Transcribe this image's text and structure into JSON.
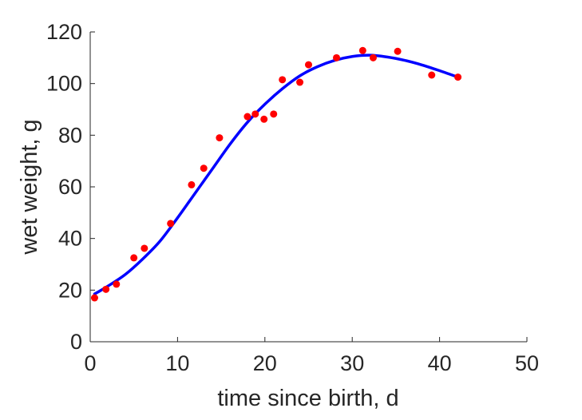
{
  "chart_data": {
    "type": "scatter",
    "title": "",
    "xlabel": "time since birth, d",
    "ylabel": "wet weight, g",
    "xlim": [
      0,
      50
    ],
    "ylim": [
      0,
      120
    ],
    "xticks": [
      0,
      10,
      20,
      30,
      40,
      50
    ],
    "yticks": [
      0,
      20,
      40,
      60,
      80,
      100,
      120
    ],
    "grid": false,
    "legend": "none",
    "series": [
      {
        "kind": "scatter",
        "color": "#ff0000",
        "points": [
          [
            0.5,
            17.0
          ],
          [
            1.8,
            20.3
          ],
          [
            3.0,
            22.3
          ],
          [
            5.0,
            32.5
          ],
          [
            6.2,
            36.2
          ],
          [
            9.2,
            45.8
          ],
          [
            11.6,
            60.8
          ],
          [
            13.0,
            67.2
          ],
          [
            14.8,
            79.0
          ],
          [
            18.0,
            87.2
          ],
          [
            18.9,
            88.2
          ],
          [
            19.9,
            86.2
          ],
          [
            21.0,
            88.2
          ],
          [
            22.0,
            101.5
          ],
          [
            24.0,
            100.5
          ],
          [
            25.0,
            107.3
          ],
          [
            28.2,
            110.0
          ],
          [
            31.2,
            112.8
          ],
          [
            32.4,
            110.0
          ],
          [
            35.2,
            112.5
          ],
          [
            39.1,
            103.3
          ],
          [
            42.1,
            102.5
          ]
        ]
      },
      {
        "kind": "line",
        "color": "#0000ff",
        "points": [
          [
            0.5,
            18.5
          ],
          [
            2,
            21.5
          ],
          [
            4,
            26.0
          ],
          [
            6,
            32.0
          ],
          [
            8,
            39.0
          ],
          [
            10,
            48.0
          ],
          [
            12,
            57.5
          ],
          [
            14,
            67.0
          ],
          [
            16,
            76.5
          ],
          [
            18,
            85.0
          ],
          [
            20,
            92.0
          ],
          [
            22,
            98.0
          ],
          [
            24,
            103.0
          ],
          [
            26,
            106.5
          ],
          [
            28,
            109.0
          ],
          [
            30,
            110.5
          ],
          [
            32,
            111.0
          ],
          [
            34,
            110.3
          ],
          [
            36,
            109.0
          ],
          [
            38,
            107.2
          ],
          [
            40,
            105.0
          ],
          [
            42.1,
            102.5
          ]
        ]
      }
    ]
  }
}
